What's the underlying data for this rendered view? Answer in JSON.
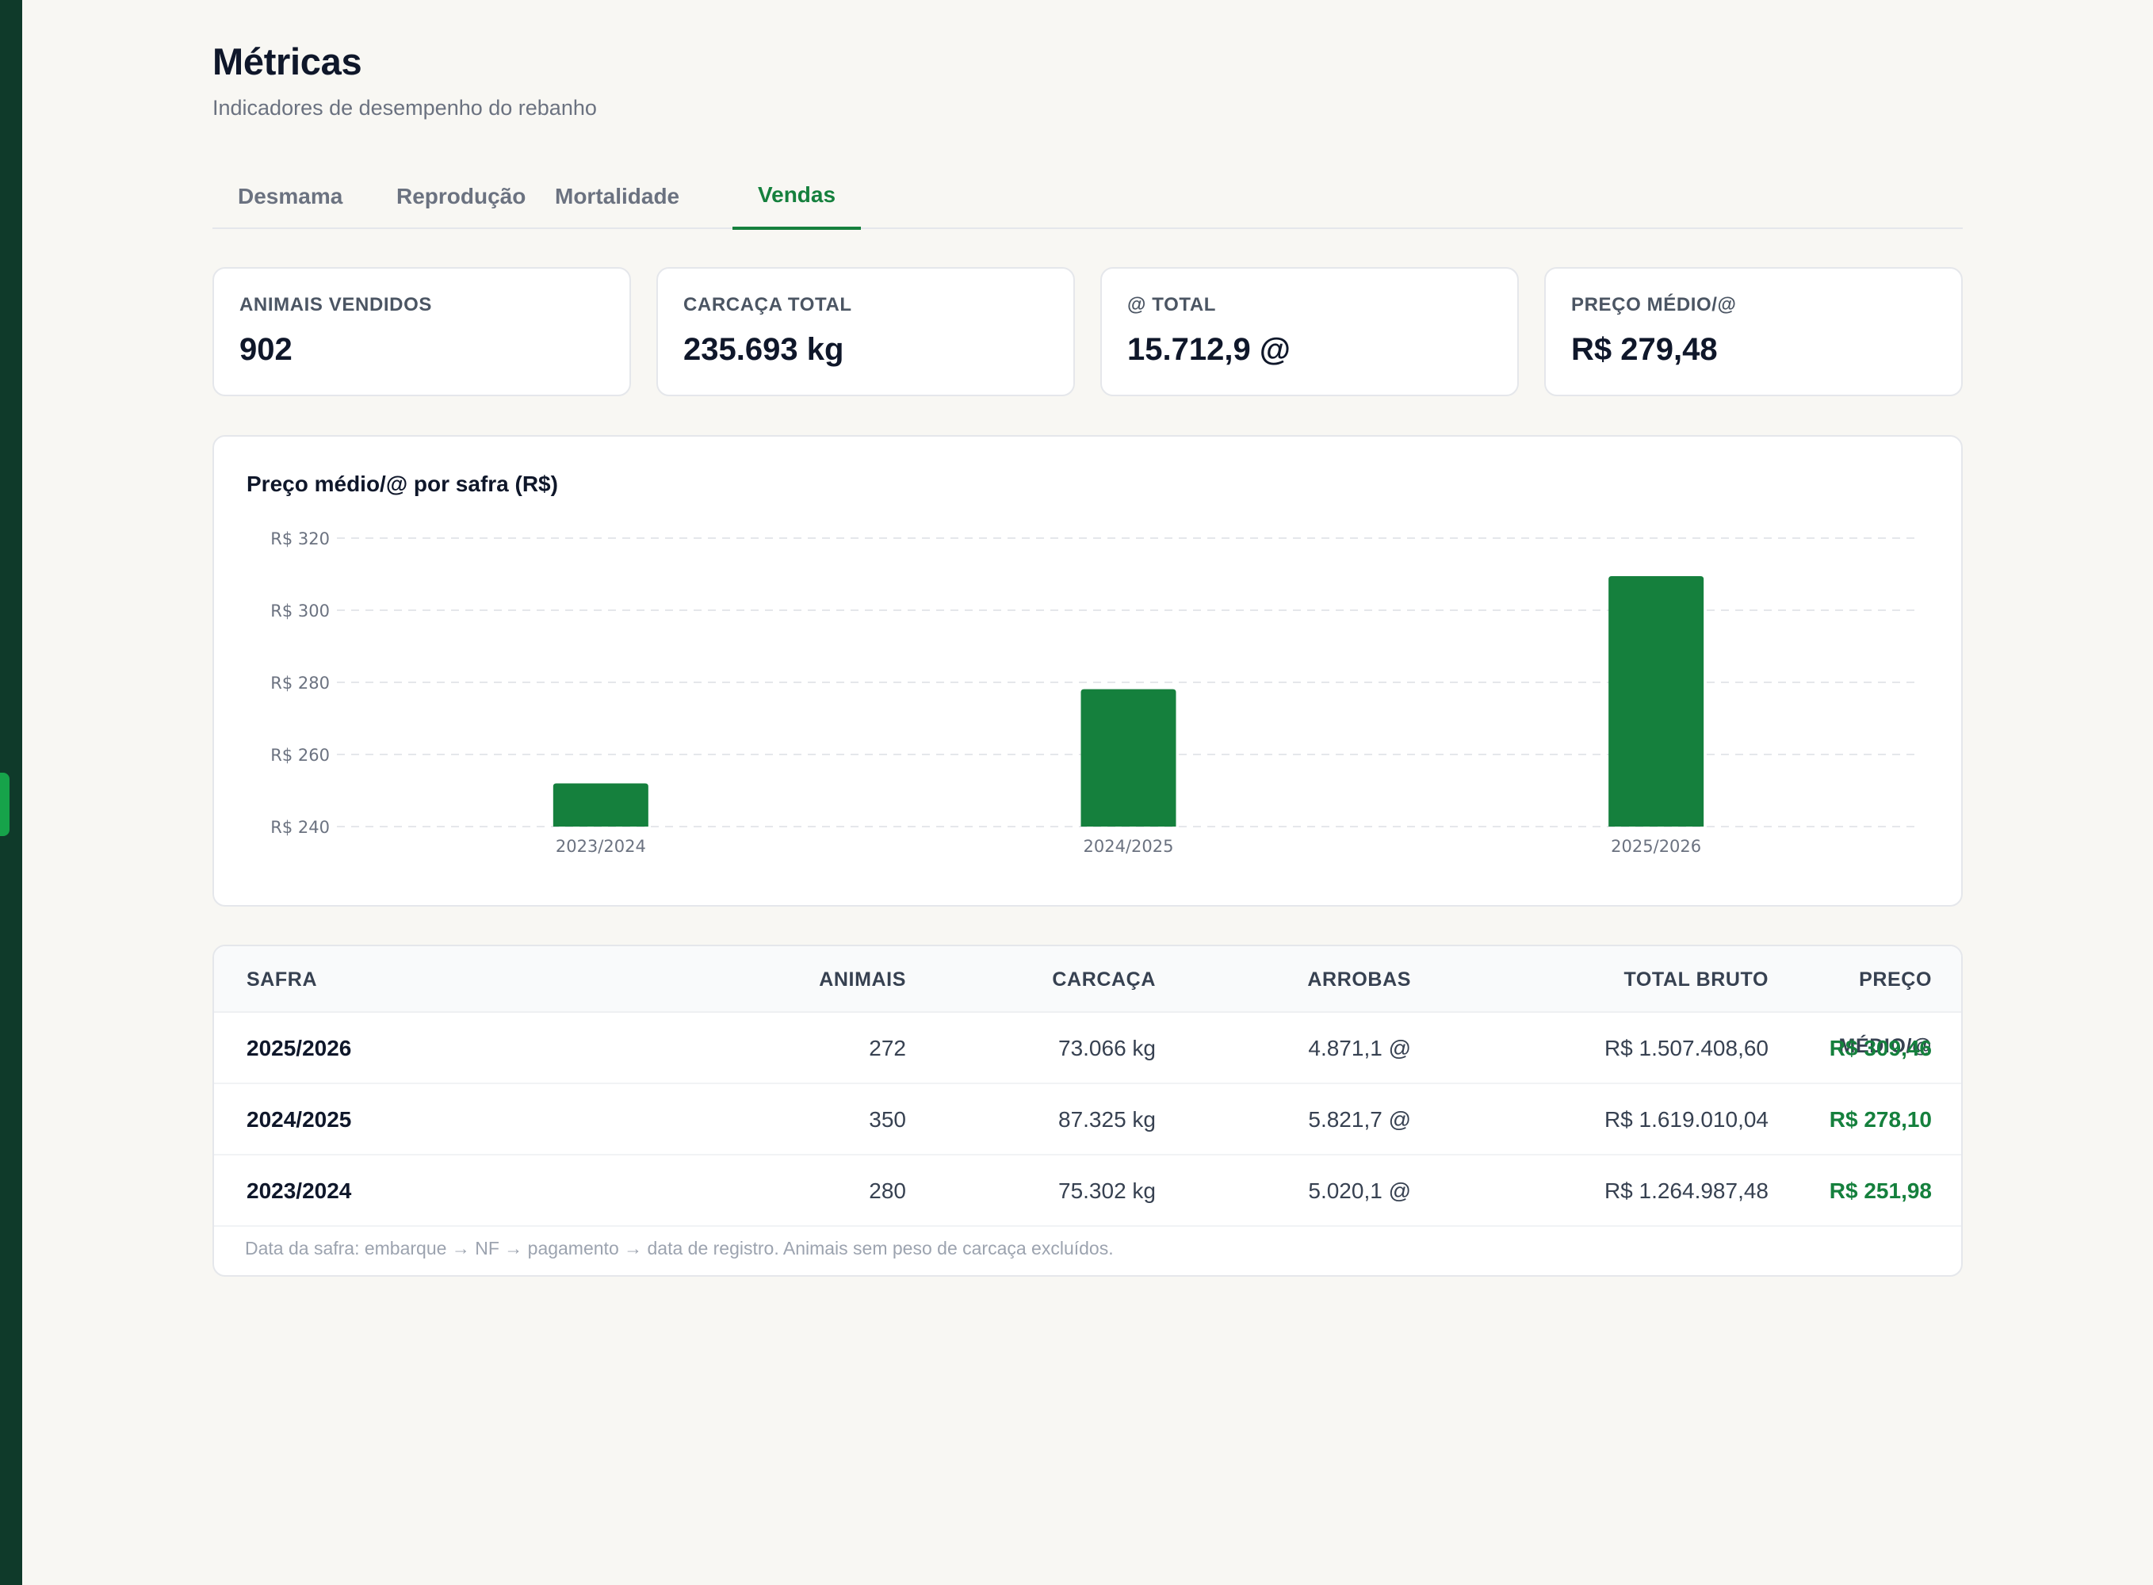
{
  "page": {
    "title": "Métricas",
    "subtitle": "Indicadores de desempenho do rebanho"
  },
  "tabs": [
    {
      "label": "Desmama",
      "active": false
    },
    {
      "label": "Reprodução",
      "active": false
    },
    {
      "label": "Mortalidade",
      "active": false
    },
    {
      "label": "Vendas",
      "active": true
    }
  ],
  "kpis": [
    {
      "label": "ANIMAIS VENDIDOS",
      "value": "902"
    },
    {
      "label": "CARCAÇA TOTAL",
      "value": "235.693 kg"
    },
    {
      "label": "@ TOTAL",
      "value": "15.712,9 @"
    },
    {
      "label": "PREÇO MÉDIO/@",
      "value": "R$ 279,48"
    }
  ],
  "chart_data": {
    "type": "bar",
    "title": "Preço médio/@ por safra (R$)",
    "categories": [
      "2023/2024",
      "2024/2025",
      "2025/2026"
    ],
    "values": [
      251.98,
      278.1,
      309.46
    ],
    "ylim": [
      240,
      320
    ],
    "yticks": [
      240,
      260,
      280,
      300,
      320
    ],
    "ytick_labels": [
      "R$ 240",
      "R$ 260",
      "R$ 280",
      "R$ 300",
      "R$ 320"
    ],
    "grid": true,
    "bar_color": "#15803d"
  },
  "table": {
    "headers": [
      "SAFRA",
      "ANIMAIS",
      "CARCAÇA",
      "ARROBAS",
      "TOTAL BRUTO",
      "PREÇO MÉDIO/@"
    ],
    "rows": [
      [
        "2025/2026",
        "272",
        "73.066 kg",
        "4.871,1 @",
        "R$ 1.507.408,60",
        "R$ 309,46"
      ],
      [
        "2024/2025",
        "350",
        "87.325 kg",
        "5.821,7 @",
        "R$ 1.619.010,04",
        "R$ 278,10"
      ],
      [
        "2023/2024",
        "280",
        "75.302 kg",
        "5.020,1 @",
        "R$ 1.264.987,48",
        "R$ 251,98"
      ]
    ],
    "note": "Data da safra: embarque → NF → pagamento → data de registro. Animais sem peso de carcaça excluídos."
  },
  "colors": {
    "sidebar": "#0f3a2a",
    "accent": "#15803d",
    "background": "#f8f7f3"
  }
}
